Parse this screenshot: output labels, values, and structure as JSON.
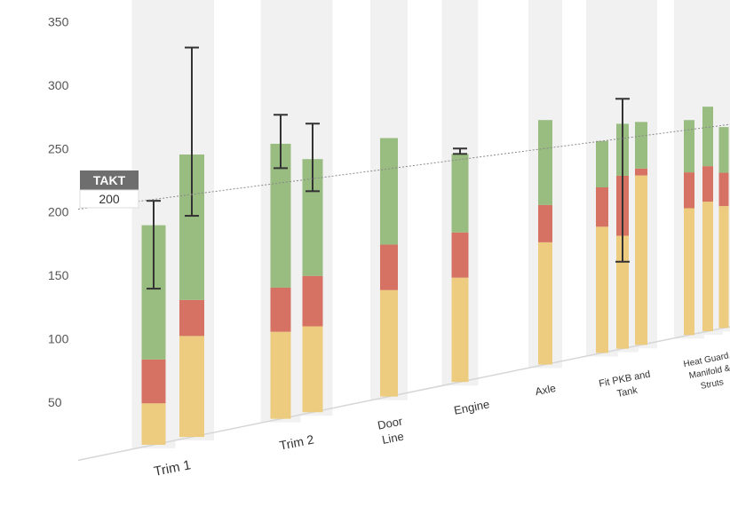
{
  "chart_data": {
    "type": "bar",
    "stacked": true,
    "ylim": [
      0,
      350
    ],
    "yticks": [
      50,
      100,
      150,
      200,
      250,
      300,
      350
    ],
    "grid": false,
    "takt": {
      "label": "TAKT",
      "value": 200
    },
    "series_colors": [
      "#edc978",
      "#d46a5c",
      "#93b87a"
    ],
    "categories": [
      {
        "label": "Trim 1",
        "bars": [
          {
            "segments": [
              34,
              36,
              110
            ],
            "error": [
              128,
              200
            ]
          },
          {
            "segments": [
              84,
              30,
              121
            ],
            "error": [
              184,
              324
            ]
          }
        ]
      },
      {
        "label": "Trim 2",
        "bars": [
          {
            "segments": [
              75,
              38,
              124
            ],
            "error": [
              216,
              262
            ]
          },
          {
            "segments": [
              75,
              44,
              102
            ],
            "error": [
              193,
              252
            ]
          }
        ]
      },
      {
        "label": "Door Line",
        "bars": [
          {
            "segments": [
              96,
              41,
              96
            ],
            "error": null
          }
        ]
      },
      {
        "label": "Engine",
        "bars": [
          {
            "segments": [
              97,
              42,
              73
            ],
            "error": [
              212,
              217
            ]
          }
        ]
      },
      {
        "label": "Axle",
        "bars": [
          {
            "segments": [
              118,
              36,
              82
            ],
            "error": null
          }
        ]
      },
      {
        "label": "Fit PKB and Tank",
        "bars": [
          {
            "segments": [
              125,
              39,
              46
            ],
            "error": null
          },
          {
            "segments": [
              113,
              60,
              52
            ],
            "error": [
              87,
              250
            ]
          },
          {
            "segments": [
              171,
              7,
              47
            ],
            "error": null
          }
        ]
      },
      {
        "label": "Heat Guard, Manifold & Struts",
        "bars": [
          {
            "segments": [
              131,
              37,
              54
            ],
            "error": null
          },
          {
            "segments": [
              135,
              37,
              62
            ],
            "error": null
          },
          {
            "segments": [
              128,
              35,
              48
            ],
            "error": null
          }
        ]
      }
    ]
  }
}
